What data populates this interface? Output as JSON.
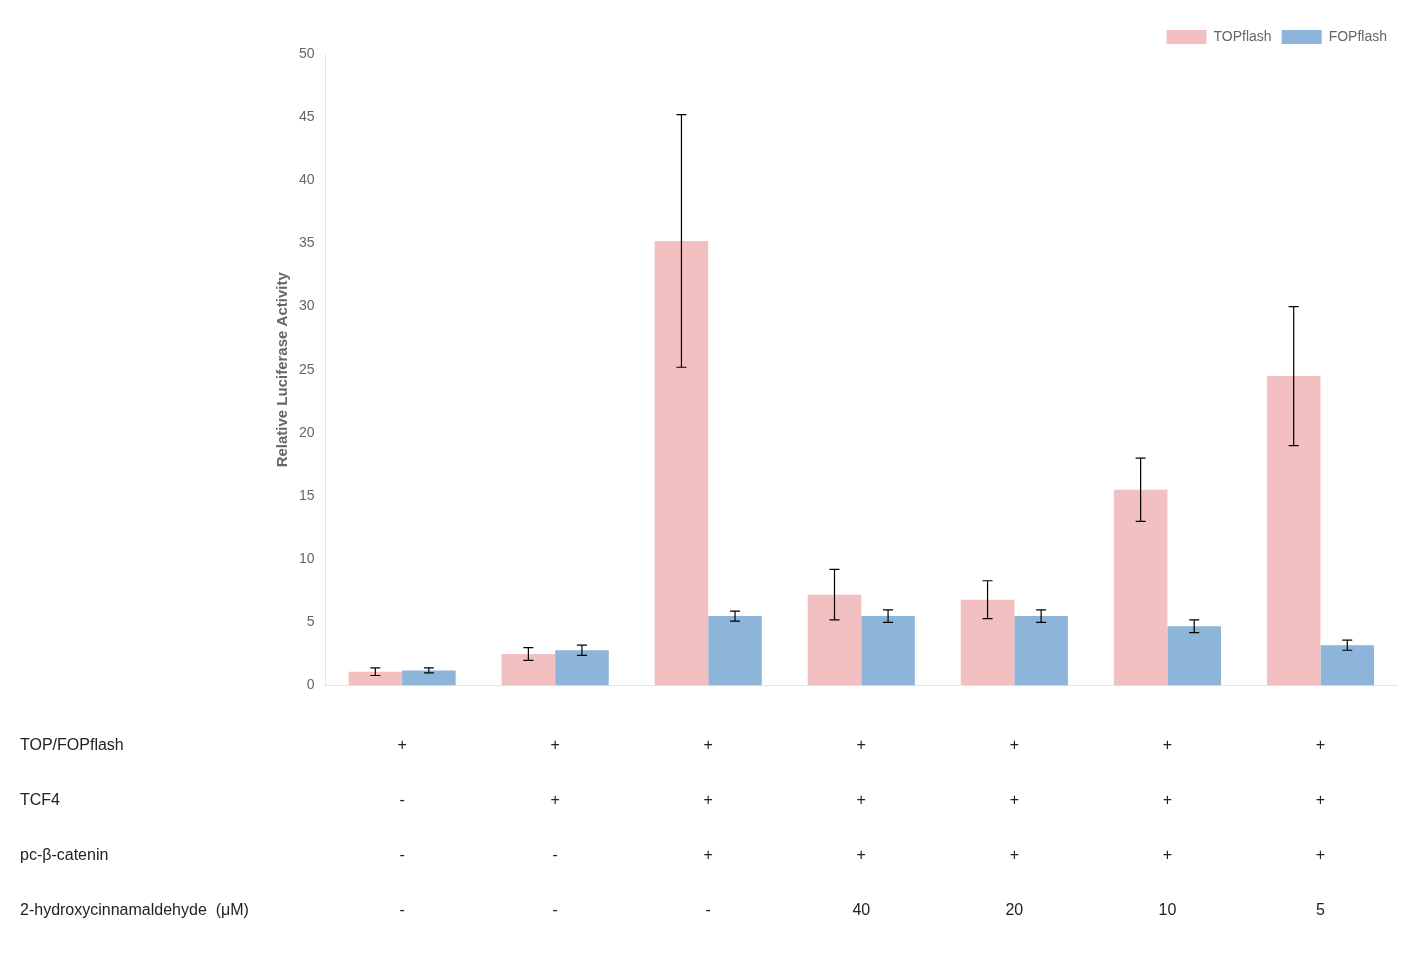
{
  "chart_data": {
    "type": "bar",
    "categories": [
      null,
      null,
      null,
      null,
      null,
      null,
      null
    ],
    "series": [
      {
        "name": "TOPflash",
        "color": "#f2c0c0",
        "values": [
          1.1,
          2.5,
          35.2,
          7.2,
          6.8,
          15.5,
          24.5
        ],
        "errors": [
          0.3,
          0.5,
          10.0,
          2.0,
          1.5,
          2.5,
          5.5
        ]
      },
      {
        "name": "FOPflash",
        "color": "#8db4d9",
        "values": [
          1.2,
          2.8,
          5.5,
          5.5,
          5.5,
          4.7,
          3.2
        ],
        "errors": [
          0.2,
          0.4,
          0.4,
          0.5,
          0.5,
          0.5,
          0.4
        ]
      }
    ],
    "ylabel": "Relative Luciferase Activity",
    "ylim": [
      0,
      50
    ],
    "yticks": [
      0,
      5,
      10,
      15,
      20,
      25,
      30,
      35,
      40,
      45,
      50
    ],
    "grid": false,
    "legend": "upper right",
    "table": {
      "row_labels": [
        "TOP/FOPflash",
        "TCF4",
        "pc-β-catenin",
        "2-hydroxycinnamaldehyde  (μM)"
      ],
      "rows": [
        [
          "+",
          "+",
          "+",
          "+",
          "+",
          "+",
          "+"
        ],
        [
          "-",
          "+",
          "+",
          "+",
          "+",
          "+",
          "+"
        ],
        [
          "-",
          "-",
          "+",
          "+",
          "+",
          "+",
          "+"
        ],
        [
          "-",
          "-",
          "-",
          "40",
          "20",
          "10",
          "5"
        ]
      ]
    }
  }
}
